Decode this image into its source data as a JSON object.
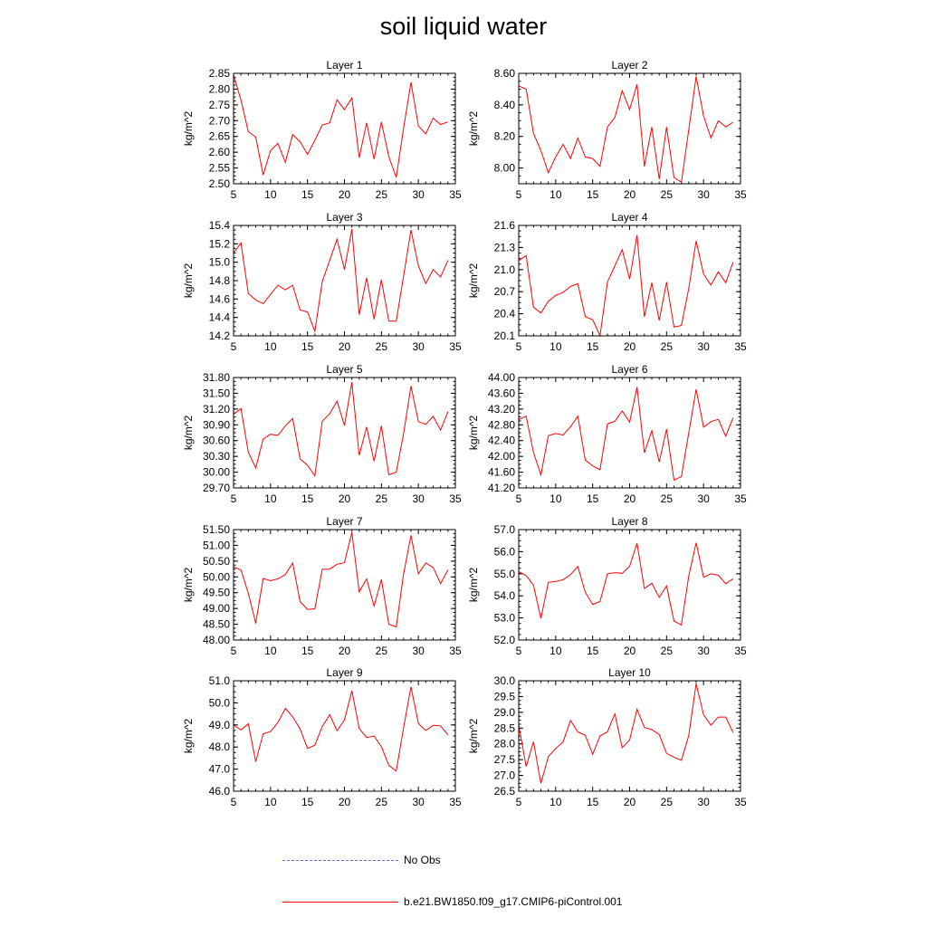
{
  "title": "soil liquid water",
  "legend": {
    "obs_label": "No Obs",
    "obs_color": "#6b6bd6",
    "model_label": "b.e21.BW1850.f09_g17.CMIP6-piControl.001",
    "model_color": "#ff0000"
  },
  "chart_data": [
    {
      "type": "line",
      "title": "Layer 1",
      "ylabel": "kg/m^2",
      "xlim": [
        5,
        35
      ],
      "ylim": [
        2.5,
        2.85
      ],
      "xticks": [
        "5",
        "10",
        "15",
        "20",
        "25",
        "30",
        "35"
      ],
      "yticks": [
        "2.50",
        "2.55",
        "2.60",
        "2.65",
        "2.70",
        "2.75",
        "2.80",
        "2.85"
      ],
      "x": [
        5,
        6,
        7,
        8,
        9,
        10,
        11,
        12,
        13,
        14,
        15,
        16,
        17,
        18,
        19,
        20,
        21,
        22,
        23,
        24,
        25,
        26,
        27,
        28,
        29,
        30,
        31,
        32,
        33,
        34
      ],
      "series": [
        {
          "values": [
            2.845,
            2.765,
            2.665,
            2.648,
            2.528,
            2.605,
            2.628,
            2.568,
            2.656,
            2.633,
            2.593,
            2.638,
            2.686,
            2.693,
            2.766,
            2.735,
            2.772,
            2.583,
            2.693,
            2.578,
            2.696,
            2.586,
            2.52,
            2.676,
            2.822,
            2.683,
            2.658,
            2.708,
            2.688,
            2.696
          ],
          "color": "#ff0000"
        }
      ]
    },
    {
      "type": "line",
      "title": "Layer 2",
      "ylabel": "kg/m^2",
      "xlim": [
        5,
        35
      ],
      "ylim": [
        7.9,
        8.6
      ],
      "xticks": [
        "5",
        "10",
        "15",
        "20",
        "25",
        "30",
        "35"
      ],
      "yticks": [
        "8.00",
        "8.20",
        "8.40",
        "8.60"
      ],
      "x": [
        5,
        6,
        7,
        8,
        9,
        10,
        11,
        12,
        13,
        14,
        15,
        16,
        17,
        18,
        19,
        20,
        21,
        22,
        23,
        24,
        25,
        26,
        27,
        28,
        29,
        30,
        31,
        32,
        33,
        34
      ],
      "series": [
        {
          "values": [
            8.52,
            8.5,
            8.22,
            8.11,
            7.97,
            8.07,
            8.15,
            8.06,
            8.19,
            8.07,
            8.06,
            8.01,
            8.26,
            8.32,
            8.49,
            8.37,
            8.53,
            8.01,
            8.26,
            7.93,
            8.26,
            7.94,
            7.91,
            8.24,
            8.58,
            8.33,
            8.19,
            8.3,
            8.26,
            8.29
          ],
          "color": "#ff0000"
        }
      ]
    },
    {
      "type": "line",
      "title": "Layer 3",
      "ylabel": "kg/m^2",
      "xlim": [
        5,
        35
      ],
      "ylim": [
        14.2,
        15.4
      ],
      "xticks": [
        "5",
        "10",
        "15",
        "20",
        "25",
        "30",
        "35"
      ],
      "yticks": [
        "14.2",
        "14.4",
        "14.6",
        "14.8",
        "15.0",
        "15.2",
        "15.4"
      ],
      "x": [
        5,
        6,
        7,
        8,
        9,
        10,
        11,
        12,
        13,
        14,
        15,
        16,
        17,
        18,
        19,
        20,
        21,
        22,
        23,
        24,
        25,
        26,
        27,
        28,
        29,
        30,
        31,
        32,
        33,
        34
      ],
      "series": [
        {
          "values": [
            15.1,
            15.21,
            14.66,
            14.59,
            14.55,
            14.65,
            14.75,
            14.7,
            14.75,
            14.48,
            14.46,
            14.25,
            14.79,
            15.02,
            15.25,
            14.92,
            15.36,
            14.43,
            14.83,
            14.38,
            14.81,
            14.36,
            14.36,
            14.85,
            15.35,
            14.96,
            14.77,
            14.92,
            14.84,
            15.02
          ],
          "color": "#ff0000"
        }
      ]
    },
    {
      "type": "line",
      "title": "Layer 4",
      "ylabel": "kg/m^2",
      "xlim": [
        5,
        35
      ],
      "ylim": [
        20.1,
        21.6
      ],
      "xticks": [
        "5",
        "10",
        "15",
        "20",
        "25",
        "30",
        "35"
      ],
      "yticks": [
        "20.1",
        "20.4",
        "20.7",
        "21.0",
        "21.3",
        "21.6"
      ],
      "x": [
        5,
        6,
        7,
        8,
        9,
        10,
        11,
        12,
        13,
        14,
        15,
        16,
        17,
        18,
        19,
        20,
        21,
        22,
        23,
        24,
        25,
        26,
        27,
        28,
        29,
        30,
        31,
        32,
        33,
        34
      ],
      "series": [
        {
          "values": [
            21.12,
            21.19,
            20.49,
            20.41,
            20.57,
            20.65,
            20.69,
            20.77,
            20.81,
            20.36,
            20.32,
            20.1,
            20.83,
            21.05,
            21.27,
            20.87,
            21.47,
            20.36,
            20.82,
            20.31,
            20.83,
            20.22,
            20.24,
            20.74,
            21.39,
            20.94,
            20.79,
            20.97,
            20.82,
            21.1
          ],
          "color": "#ff0000"
        }
      ]
    },
    {
      "type": "line",
      "title": "Layer 5",
      "ylabel": "kg/m^2",
      "xlim": [
        5,
        35
      ],
      "ylim": [
        29.7,
        31.8
      ],
      "xticks": [
        "5",
        "10",
        "15",
        "20",
        "25",
        "30",
        "35"
      ],
      "yticks": [
        "29.70",
        "30.00",
        "30.30",
        "30.60",
        "30.90",
        "31.20",
        "31.50",
        "31.80"
      ],
      "x": [
        5,
        6,
        7,
        8,
        9,
        10,
        11,
        12,
        13,
        14,
        15,
        16,
        17,
        18,
        19,
        20,
        21,
        22,
        23,
        24,
        25,
        26,
        27,
        28,
        29,
        30,
        31,
        32,
        33,
        34
      ],
      "series": [
        {
          "values": [
            31.1,
            31.21,
            30.38,
            30.08,
            30.63,
            30.72,
            30.7,
            30.88,
            31.02,
            30.25,
            30.13,
            29.93,
            30.97,
            31.11,
            31.35,
            30.89,
            31.71,
            30.32,
            30.86,
            30.21,
            30.88,
            29.95,
            30.0,
            30.73,
            31.64,
            30.96,
            30.91,
            31.06,
            30.8,
            31.15
          ],
          "color": "#ff0000"
        }
      ]
    },
    {
      "type": "line",
      "title": "Layer 6",
      "ylabel": "kg/m^2",
      "xlim": [
        5,
        35
      ],
      "ylim": [
        41.2,
        44.0
      ],
      "xticks": [
        "5",
        "10",
        "15",
        "20",
        "25",
        "30",
        "35"
      ],
      "yticks": [
        "41.20",
        "41.60",
        "42.00",
        "42.40",
        "42.80",
        "43.20",
        "43.60",
        "44.00"
      ],
      "x": [
        5,
        6,
        7,
        8,
        9,
        10,
        11,
        12,
        13,
        14,
        15,
        16,
        17,
        18,
        19,
        20,
        21,
        22,
        23,
        24,
        25,
        26,
        27,
        28,
        29,
        30,
        31,
        32,
        33,
        34
      ],
      "series": [
        {
          "values": [
            42.93,
            43.02,
            42.1,
            41.53,
            42.53,
            42.58,
            42.54,
            42.75,
            43.02,
            41.91,
            41.76,
            41.66,
            42.82,
            42.89,
            43.15,
            42.87,
            43.76,
            42.09,
            42.65,
            41.86,
            42.69,
            41.4,
            41.49,
            42.59,
            43.7,
            42.74,
            42.88,
            42.94,
            42.51,
            42.98
          ],
          "color": "#ff0000"
        }
      ]
    },
    {
      "type": "line",
      "title": "Layer 7",
      "ylabel": "kg/m^2",
      "xlim": [
        5,
        35
      ],
      "ylim": [
        48.0,
        51.5
      ],
      "xticks": [
        "5",
        "10",
        "15",
        "20",
        "25",
        "30",
        "35"
      ],
      "yticks": [
        "48.00",
        "48.50",
        "49.00",
        "49.50",
        "50.00",
        "50.50",
        "51.00",
        "51.50"
      ],
      "x": [
        5,
        6,
        7,
        8,
        9,
        10,
        11,
        12,
        13,
        14,
        15,
        16,
        17,
        18,
        19,
        20,
        21,
        22,
        23,
        24,
        25,
        26,
        27,
        28,
        29,
        30,
        31,
        32,
        33,
        34
      ],
      "series": [
        {
          "values": [
            50.32,
            50.22,
            49.48,
            48.53,
            49.95,
            49.88,
            49.94,
            50.07,
            50.44,
            49.22,
            48.97,
            48.99,
            50.24,
            50.25,
            50.4,
            50.45,
            51.41,
            49.53,
            49.94,
            49.08,
            49.92,
            48.5,
            48.42,
            50.09,
            51.32,
            50.1,
            50.44,
            50.3,
            49.79,
            50.22
          ],
          "color": "#ff0000"
        }
      ]
    },
    {
      "type": "line",
      "title": "Layer 8",
      "ylabel": "kg/m^2",
      "xlim": [
        5,
        35
      ],
      "ylim": [
        52.0,
        57.0
      ],
      "xticks": [
        "5",
        "10",
        "15",
        "20",
        "25",
        "30",
        "35"
      ],
      "yticks": [
        "52.0",
        "53.0",
        "54.0",
        "55.0",
        "56.0",
        "57.0"
      ],
      "x": [
        5,
        6,
        7,
        8,
        9,
        10,
        11,
        12,
        13,
        14,
        15,
        16,
        17,
        18,
        19,
        20,
        21,
        22,
        23,
        24,
        25,
        26,
        27,
        28,
        29,
        30,
        31,
        32,
        33,
        34
      ],
      "series": [
        {
          "values": [
            55.1,
            54.92,
            54.48,
            52.98,
            54.61,
            54.65,
            54.73,
            54.96,
            55.33,
            54.17,
            53.61,
            53.74,
            55.0,
            55.05,
            55.02,
            55.34,
            56.38,
            54.33,
            54.57,
            53.93,
            54.45,
            52.86,
            52.68,
            54.89,
            56.4,
            54.84,
            55.0,
            54.93,
            54.55,
            54.77
          ],
          "color": "#ff0000"
        }
      ]
    },
    {
      "type": "line",
      "title": "Layer 9",
      "ylabel": "kg/m^2",
      "xlim": [
        5,
        35
      ],
      "ylim": [
        46.0,
        51.0
      ],
      "xticks": [
        "5",
        "10",
        "15",
        "20",
        "25",
        "30",
        "35"
      ],
      "yticks": [
        "46.0",
        "47.0",
        "48.0",
        "49.0",
        "50.0",
        "51.0"
      ],
      "x": [
        5,
        6,
        7,
        8,
        9,
        10,
        11,
        12,
        13,
        14,
        15,
        16,
        17,
        18,
        19,
        20,
        21,
        22,
        23,
        24,
        25,
        26,
        27,
        28,
        29,
        30,
        31,
        32,
        33,
        34
      ],
      "series": [
        {
          "values": [
            48.99,
            48.78,
            49.05,
            47.34,
            48.6,
            48.7,
            49.11,
            49.75,
            49.37,
            48.82,
            47.94,
            48.08,
            48.93,
            49.46,
            48.74,
            49.22,
            50.55,
            48.84,
            48.43,
            48.5,
            48.02,
            47.17,
            46.92,
            48.86,
            50.73,
            49.06,
            48.75,
            48.98,
            48.96,
            48.55
          ],
          "color": "#ff0000"
        }
      ]
    },
    {
      "type": "line",
      "title": "Layer 10",
      "ylabel": "kg/m^2",
      "xlim": [
        5,
        35
      ],
      "ylim": [
        26.5,
        30.0
      ],
      "xticks": [
        "5",
        "10",
        "15",
        "20",
        "25",
        "30",
        "35"
      ],
      "yticks": [
        "26.5",
        "27.0",
        "27.5",
        "28.0",
        "28.5",
        "29.0",
        "29.5",
        "30.0"
      ],
      "x": [
        5,
        6,
        7,
        8,
        9,
        10,
        11,
        12,
        13,
        14,
        15,
        16,
        17,
        18,
        19,
        20,
        21,
        22,
        23,
        24,
        25,
        26,
        27,
        28,
        29,
        30,
        31,
        32,
        33,
        34
      ],
      "series": [
        {
          "values": [
            28.6,
            27.28,
            28.07,
            26.75,
            27.6,
            27.85,
            28.06,
            28.74,
            28.38,
            28.27,
            27.67,
            28.25,
            28.38,
            28.95,
            27.88,
            28.12,
            29.1,
            28.52,
            28.45,
            28.3,
            27.7,
            27.58,
            27.48,
            28.26,
            29.91,
            28.92,
            28.59,
            28.85,
            28.85,
            28.36
          ],
          "color": "#ff0000"
        }
      ]
    }
  ]
}
